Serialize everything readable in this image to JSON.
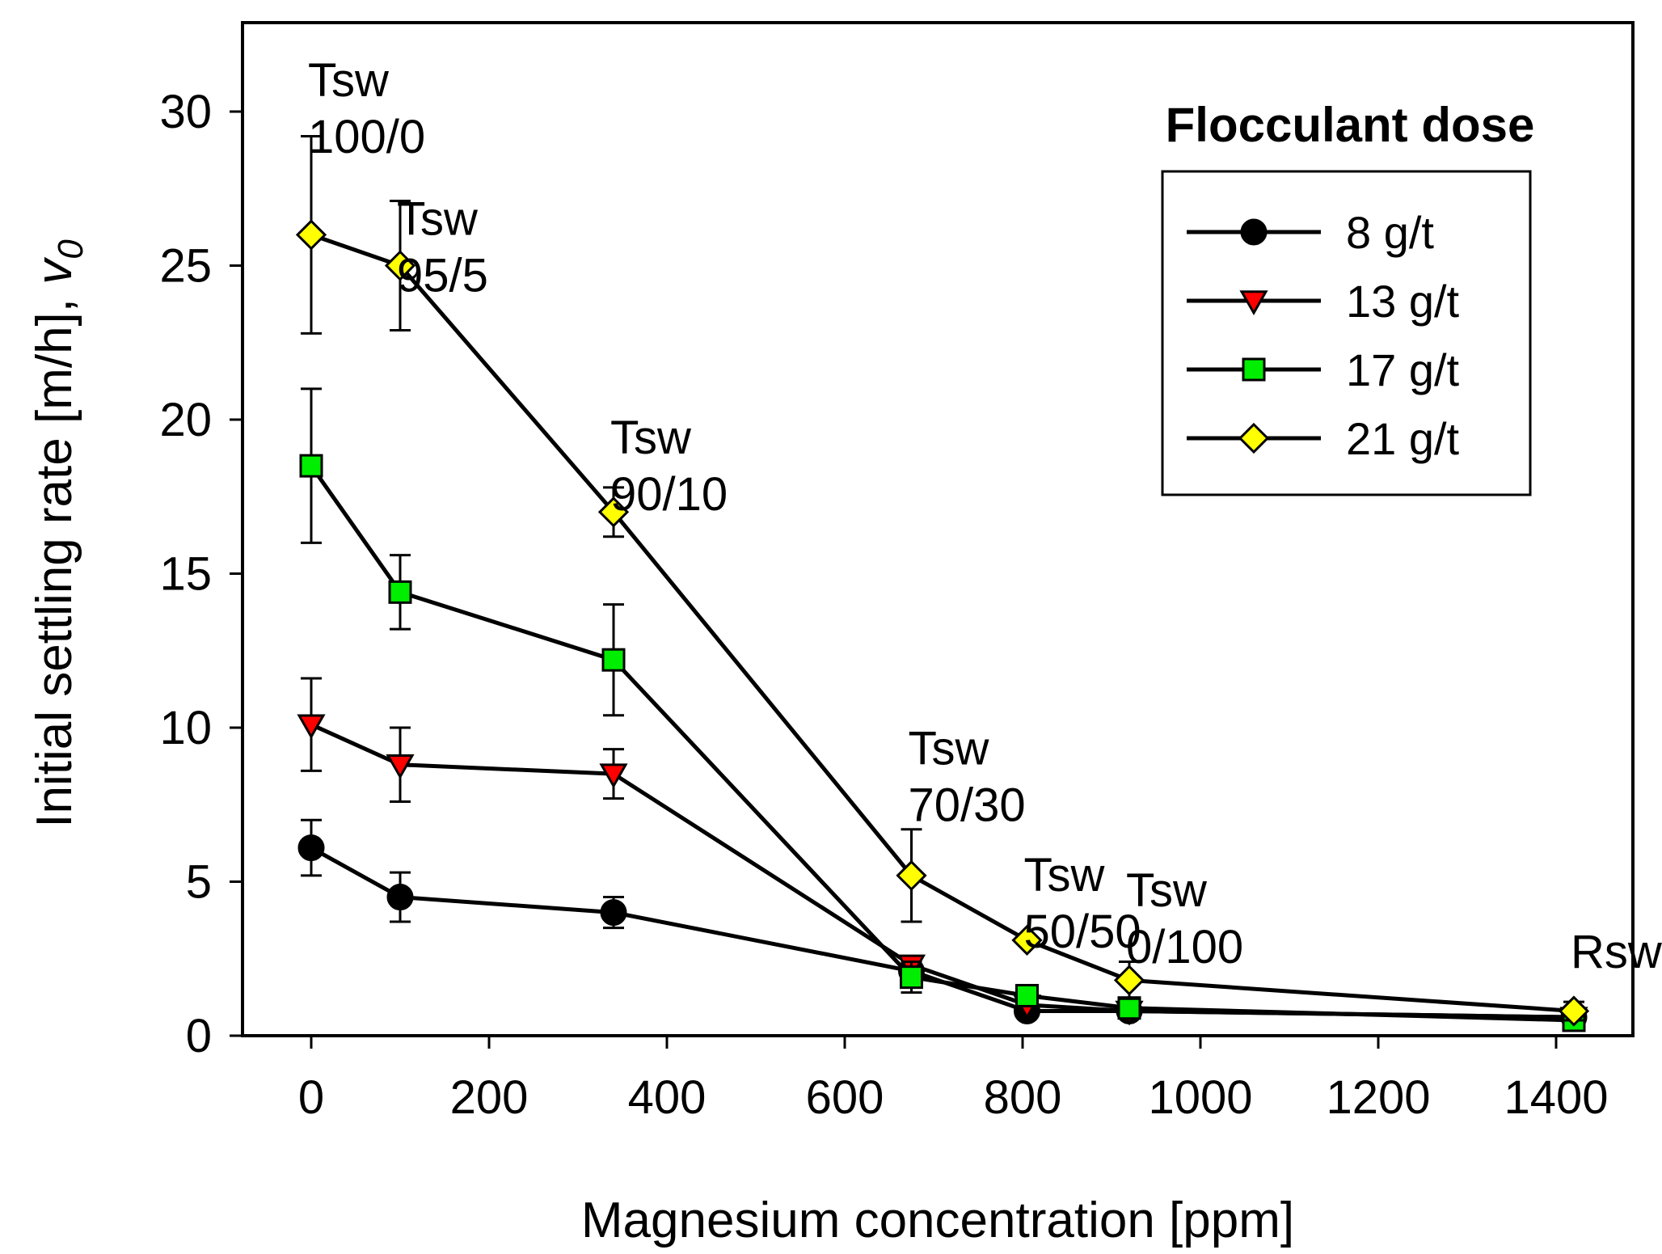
{
  "chart_data": {
    "type": "line",
    "xlabel": "Magnesium concentration [ppm]",
    "ylabel": "Initial settling rate [m/h], ",
    "ylabel_symbol": "v",
    "ylabel_subscript": "0",
    "xlim": [
      -80,
      1470
    ],
    "ylim": [
      0,
      33
    ],
    "xticks": [
      0,
      200,
      400,
      600,
      800,
      1000,
      1200,
      1400
    ],
    "yticks": [
      0,
      5,
      10,
      15,
      20,
      25,
      30
    ],
    "legend": {
      "title": "Flocculant dose",
      "placement": "top-right",
      "entries": [
        "8  g/t",
        "13 g/t",
        "17 g/t",
        "21 g/t"
      ]
    },
    "x": [
      0,
      100,
      340,
      675,
      805,
      920,
      1420
    ],
    "series": [
      {
        "name": "8  g/t",
        "marker": "circle",
        "color": "#000000",
        "values": [
          6.1,
          4.5,
          4.0,
          2.1,
          0.8,
          0.8,
          0.6
        ],
        "error": [
          0.9,
          0.8,
          0.5,
          0,
          0,
          0,
          0
        ]
      },
      {
        "name": "13 g/t",
        "marker": "triangle-down",
        "color": "#ff0000",
        "values": [
          10.1,
          8.8,
          8.5,
          2.3,
          1.0,
          0.8,
          0.6
        ],
        "error": [
          1.5,
          1.2,
          0.8,
          0,
          0,
          0,
          0
        ]
      },
      {
        "name": "17 g/t",
        "marker": "square",
        "color": "#00ee00",
        "values": [
          18.5,
          14.4,
          12.2,
          1.9,
          1.3,
          0.9,
          0.5
        ],
        "error": [
          2.5,
          1.2,
          1.8,
          0.5,
          0,
          0,
          0
        ]
      },
      {
        "name": "21 g/t",
        "marker": "diamond",
        "color": "#ffff00",
        "values": [
          26.0,
          25.0,
          17.0,
          5.2,
          3.1,
          1.8,
          0.8
        ],
        "error": [
          3.2,
          2.1,
          0.8,
          1.5,
          0,
          0.6,
          0.3
        ]
      }
    ],
    "annotations": [
      {
        "lines": [
          "Tsw",
          "100/0"
        ],
        "x": 0,
        "y": 30.5
      },
      {
        "lines": [
          "Tsw",
          "95/5"
        ],
        "x": 100,
        "y": 26.0
      },
      {
        "lines": [
          "Tsw",
          "90/10"
        ],
        "x": 340,
        "y": 18.9
      },
      {
        "lines": [
          "Tsw",
          "70/30"
        ],
        "x": 675,
        "y": 8.8
      },
      {
        "lines": [
          "Tsw",
          "50/50"
        ],
        "x": 805,
        "y": 4.7
      },
      {
        "lines": [
          "Tsw",
          "0/100"
        ],
        "x": 920,
        "y": 4.2
      },
      {
        "lines": [
          "Rsw"
        ],
        "x": 1420,
        "y": 2.2
      }
    ]
  }
}
